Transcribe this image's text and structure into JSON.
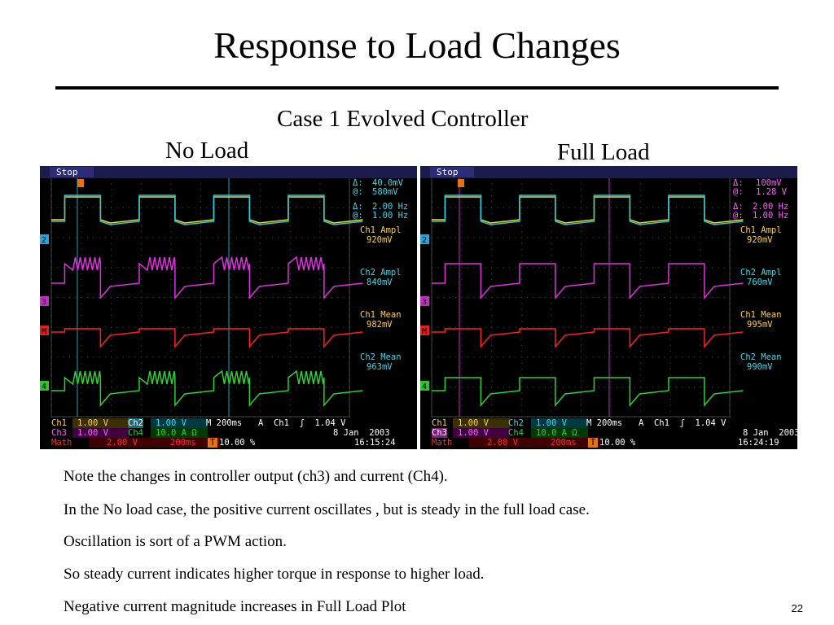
{
  "title": "Response to Load Changes",
  "subtitle": "Case 1 Evolved Controller",
  "left_label": "No Load",
  "right_label": "Full Load",
  "scopes": [
    {
      "status": "Stop",
      "cursor_delta_v": "40.0mV",
      "cursor_at_v": "580mV",
      "cursor_delta_f": "2.00 Hz",
      "cursor_at_f": "1.00 Hz",
      "meas": [
        {
          "label": "Ch1 Ampl",
          "value": "920mV"
        },
        {
          "label": "Ch2 Ampl",
          "value": "840mV"
        },
        {
          "label": "Ch1 Mean",
          "value": "982mV"
        },
        {
          "label": "Ch2 Mean",
          "value": "963mV"
        }
      ],
      "ch1": "Ch1",
      "ch1_scale": "1.00 V",
      "ch2": "Ch2",
      "ch2_scale": "1.00 V",
      "ch3": "Ch3",
      "ch3_scale": "1.00 V",
      "ch4": "Ch4",
      "ch4_scale": "10.0 A Ω",
      "math": "Math",
      "math_scale": "2.00 V",
      "math_time": "200ms",
      "timebase": "M 200ms",
      "trigger": "A  Ch1  ʃ  1.04 V",
      "trig_marker": "T",
      "trigger_pos": "10.00 %",
      "date": "8 Jan  2003",
      "time": "16:15:24"
    },
    {
      "status": "Stop",
      "cursor_delta_v": "100mV",
      "cursor_at_v": "1.28 V",
      "cursor_delta_f": "2.00 Hz",
      "cursor_at_f": "1.00 Hz",
      "meas": [
        {
          "label": "Ch1 Ampl",
          "value": "920mV"
        },
        {
          "label": "Ch2 Ampl",
          "value": "760mV"
        },
        {
          "label": "Ch1 Mean",
          "value": "995mV"
        },
        {
          "label": "Ch2 Mean",
          "value": "990mV"
        }
      ],
      "ch1": "Ch1",
      "ch1_scale": "1.00 V",
      "ch2": "Ch2",
      "ch2_scale": "1.00 V",
      "ch3": "Ch3",
      "ch3_scale": "1.00 V",
      "ch4": "Ch4",
      "ch4_scale": "10.0 A Ω",
      "math": "Math",
      "math_scale": "2.00 V",
      "math_time": "200ms",
      "timebase": "M 200ms",
      "trigger": "A  Ch1  ʃ  1.04 V",
      "trig_marker": "T",
      "trigger_pos": "10.00 %",
      "date": "8 Jan  2003",
      "time": "16:24:19"
    }
  ],
  "notes": [
    "Note the changes in controller output (ch3) and current (Ch4).",
    "In the No load case, the positive current oscillates , but is steady in the full load case.",
    "Oscillation is sort of a PWM action.",
    "So steady current indicates higher torque in response to higher load.",
    "Negative current magnitude increases in Full Load Plot"
  ],
  "page_number": "22",
  "colors": {
    "ch1": "#f0e020",
    "ch2": "#30c8d8",
    "ch3": "#e030e0",
    "ch4": "#30d030",
    "math": "#ff2020",
    "meas_label": "#ffd040",
    "meas_value": "#ffd040",
    "cyan_text": "#40d8e8",
    "magenta_text": "#ff60ff"
  }
}
